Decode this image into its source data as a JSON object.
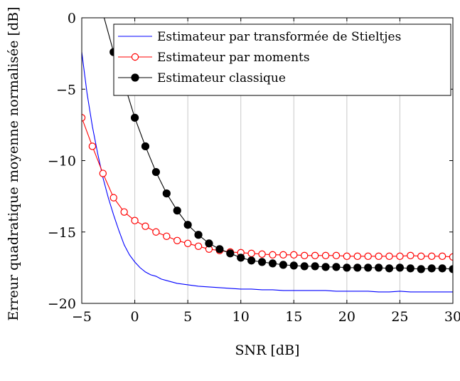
{
  "chart_data": {
    "type": "line",
    "xlabel": "SNR [dB]",
    "ylabel": "Erreur quadratique moyenne normalisée [dB]",
    "xlim": [
      -5,
      30
    ],
    "ylim": [
      -20,
      0
    ],
    "xticks": [
      -5,
      0,
      5,
      10,
      15,
      20,
      25,
      30
    ],
    "yticks": [
      0,
      -5,
      -10,
      -15,
      -20
    ],
    "xtick_labels": [
      "−5",
      "0",
      "5",
      "10",
      "15",
      "20",
      "25",
      "30"
    ],
    "ytick_labels": [
      "0",
      "−5",
      "−10",
      "−15",
      "−20"
    ],
    "grid": "vertical",
    "legend_position": "top-right",
    "series": [
      {
        "name": "Estimateur par transformée de Stieltjes",
        "color": "#0000ff",
        "marker": "none",
        "x": [
          -5,
          -4.5,
          -4,
          -3.5,
          -3,
          -2.5,
          -2,
          -1.5,
          -1,
          -0.5,
          0,
          0.5,
          1,
          1.5,
          2,
          2.5,
          3,
          3.5,
          4,
          5,
          6,
          7,
          8,
          9,
          10,
          11,
          12,
          13,
          14,
          15,
          16,
          17,
          18,
          19,
          20,
          21,
          22,
          23,
          24,
          25,
          26,
          27,
          28,
          29,
          30
        ],
        "values": [
          -2.4,
          -5.3,
          -7.6,
          -9.5,
          -11.2,
          -12.6,
          -13.8,
          -14.9,
          -15.9,
          -16.6,
          -17.1,
          -17.5,
          -17.8,
          -18.0,
          -18.1,
          -18.3,
          -18.4,
          -18.5,
          -18.6,
          -18.7,
          -18.8,
          -18.85,
          -18.9,
          -18.95,
          -19.0,
          -19.0,
          -19.05,
          -19.05,
          -19.1,
          -19.1,
          -19.1,
          -19.1,
          -19.1,
          -19.15,
          -19.15,
          -19.15,
          -19.15,
          -19.2,
          -19.2,
          -19.15,
          -19.2,
          -19.2,
          -19.2,
          -19.2,
          -19.2
        ]
      },
      {
        "name": "Estimateur par moments",
        "color": "#ff0000",
        "marker": "open-circle",
        "x": [
          -5,
          -4,
          -3,
          -2,
          -1,
          0,
          1,
          2,
          3,
          4,
          5,
          6,
          7,
          8,
          9,
          10,
          11,
          12,
          13,
          14,
          15,
          16,
          17,
          18,
          19,
          20,
          21,
          22,
          23,
          24,
          25,
          26,
          27,
          28,
          29,
          30
        ],
        "values": [
          -7.0,
          -9.0,
          -10.9,
          -12.6,
          -13.6,
          -14.2,
          -14.6,
          -15.0,
          -15.3,
          -15.6,
          -15.8,
          -16.0,
          -16.2,
          -16.3,
          -16.4,
          -16.45,
          -16.5,
          -16.55,
          -16.6,
          -16.6,
          -16.6,
          -16.65,
          -16.65,
          -16.65,
          -16.65,
          -16.7,
          -16.7,
          -16.7,
          -16.7,
          -16.7,
          -16.7,
          -16.65,
          -16.7,
          -16.7,
          -16.7,
          -16.75
        ]
      },
      {
        "name": "Estimateur classique",
        "color": "#000000",
        "marker": "filled-circle",
        "x": [
          -3,
          -2,
          -1,
          0,
          1,
          2,
          3,
          4,
          5,
          6,
          7,
          8,
          9,
          10,
          11,
          12,
          13,
          14,
          15,
          16,
          17,
          18,
          19,
          20,
          21,
          22,
          23,
          24,
          25,
          26,
          27,
          28,
          29,
          30
        ],
        "values": [
          0.3,
          -2.4,
          -4.6,
          -7.0,
          -9.0,
          -10.8,
          -12.3,
          -13.5,
          -14.5,
          -15.2,
          -15.8,
          -16.2,
          -16.5,
          -16.8,
          -17.0,
          -17.1,
          -17.2,
          -17.3,
          -17.35,
          -17.4,
          -17.4,
          -17.45,
          -17.45,
          -17.5,
          -17.5,
          -17.5,
          -17.5,
          -17.55,
          -17.5,
          -17.55,
          -17.6,
          -17.55,
          -17.55,
          -17.6
        ]
      }
    ]
  }
}
